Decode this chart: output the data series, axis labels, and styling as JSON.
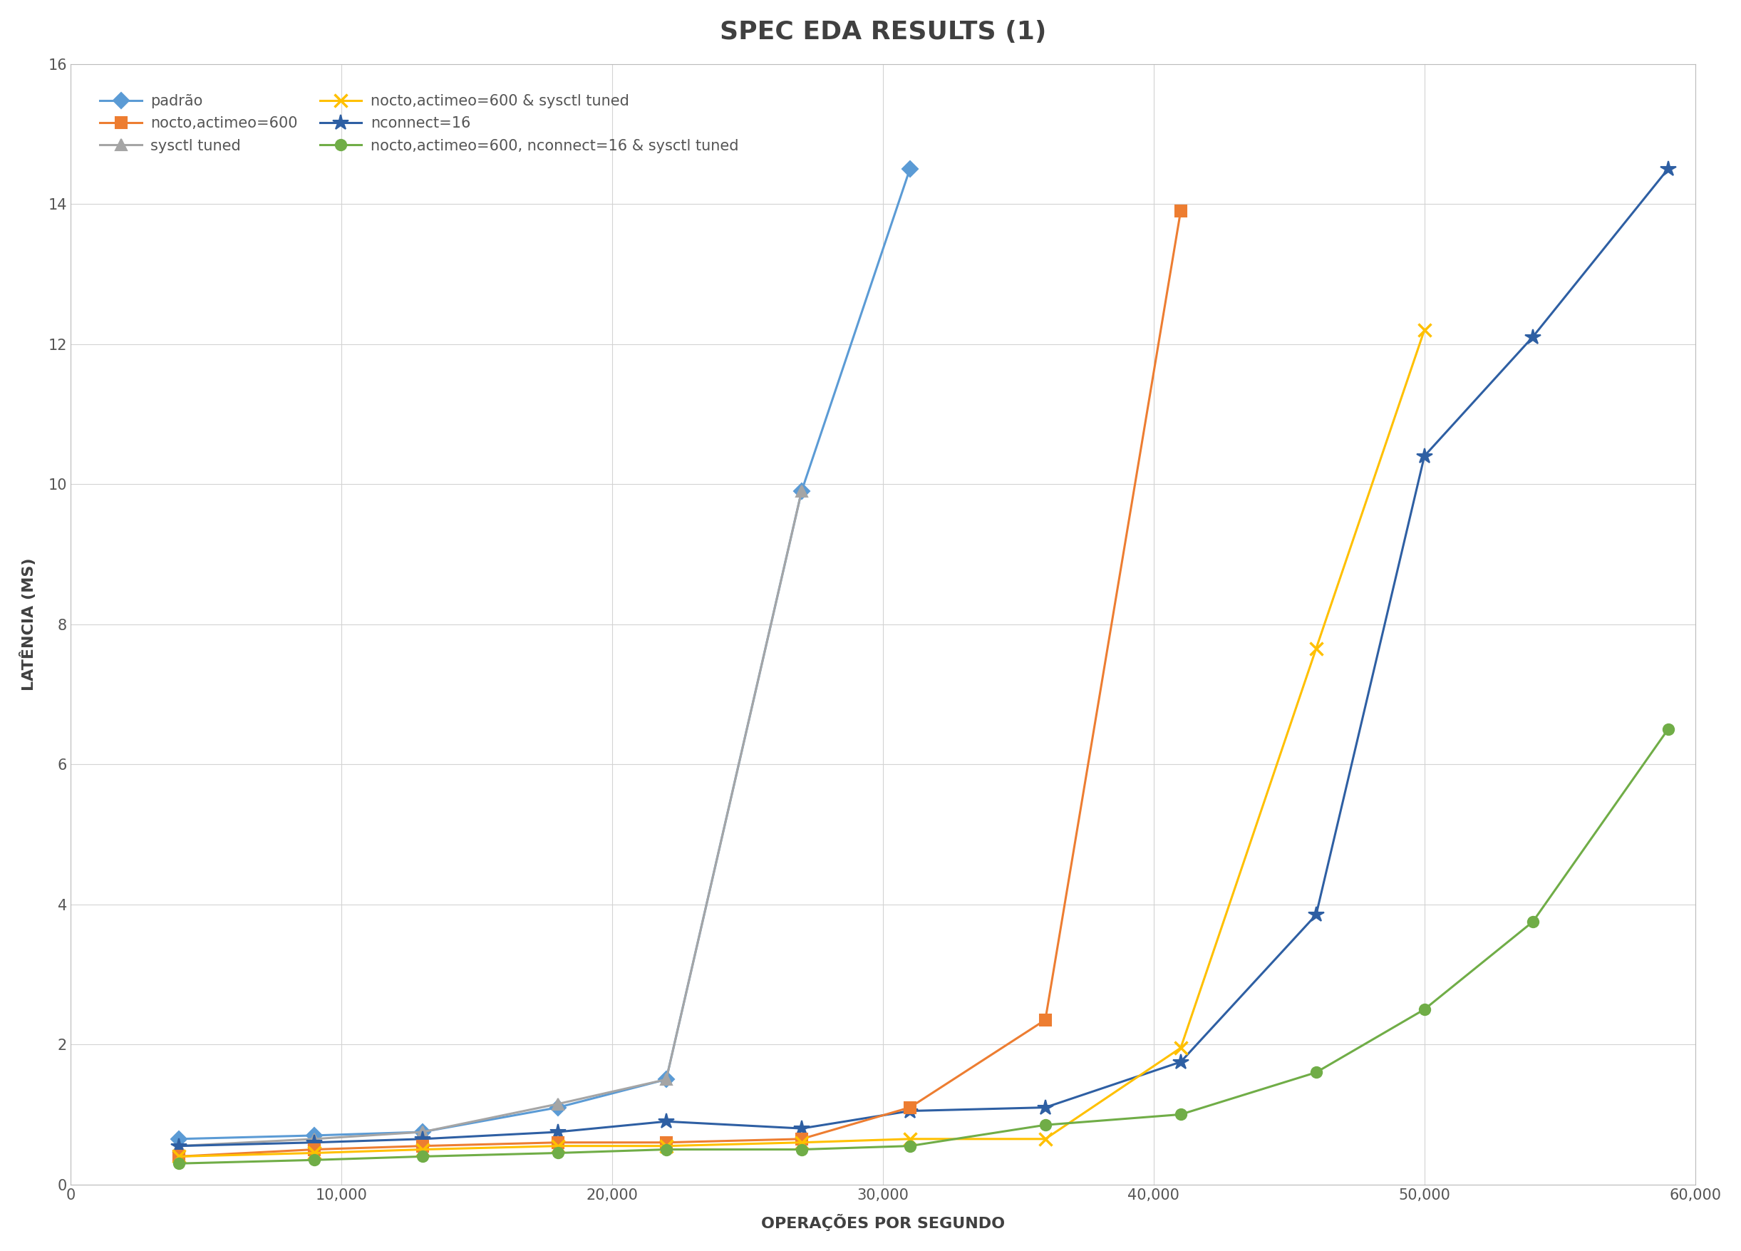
{
  "title": "SPEC EDA RESULTS (1)",
  "xlabel": "OPERAÇÕES POR SEGUNDO",
  "ylabel": "LATÊNCIA (MS)",
  "xlim": [
    0,
    60000
  ],
  "ylim": [
    0,
    16
  ],
  "yticks": [
    0,
    2,
    4,
    6,
    8,
    10,
    12,
    14,
    16
  ],
  "xticks": [
    0,
    10000,
    20000,
    30000,
    40000,
    50000,
    60000
  ],
  "series": [
    {
      "label": "padrão",
      "color": "#5B9BD5",
      "marker": "D",
      "markersize": 11,
      "linewidth": 2.2,
      "x": [
        4000,
        9000,
        13000,
        18000,
        22000,
        27000,
        31000
      ],
      "y": [
        0.65,
        0.7,
        0.75,
        1.1,
        1.5,
        9.9,
        14.5
      ]
    },
    {
      "label": "sysctl tuned",
      "color": "#A5A5A5",
      "marker": "^",
      "markersize": 11,
      "linewidth": 2.2,
      "x": [
        4000,
        9000,
        13000,
        18000,
        22000,
        27000
      ],
      "y": [
        0.55,
        0.65,
        0.75,
        1.15,
        1.5,
        9.9
      ]
    },
    {
      "label": "nconnect=16",
      "color": "#2E5FA3",
      "marker": "*",
      "markersize": 16,
      "linewidth": 2.2,
      "x": [
        4000,
        9000,
        13000,
        18000,
        22000,
        27000,
        31000,
        36000,
        41000,
        46000,
        50000,
        54000,
        59000
      ],
      "y": [
        0.55,
        0.6,
        0.65,
        0.75,
        0.9,
        0.8,
        1.05,
        1.1,
        1.75,
        3.85,
        10.4,
        12.1,
        14.5
      ]
    },
    {
      "label": "nocto,actimeo=600",
      "color": "#ED7D31",
      "marker": "s",
      "markersize": 11,
      "linewidth": 2.2,
      "x": [
        4000,
        9000,
        13000,
        18000,
        22000,
        27000,
        31000,
        36000,
        41000
      ],
      "y": [
        0.4,
        0.5,
        0.55,
        0.6,
        0.6,
        0.65,
        1.1,
        2.35,
        13.9
      ]
    },
    {
      "label": "nocto,actimeo=600 & sysctl tuned",
      "color": "#FFC000",
      "marker": "x",
      "markersize": 13,
      "linewidth": 2.2,
      "markeredgewidth": 2.5,
      "x": [
        4000,
        9000,
        13000,
        18000,
        22000,
        27000,
        31000,
        36000,
        41000,
        46000,
        50000
      ],
      "y": [
        0.4,
        0.45,
        0.5,
        0.55,
        0.55,
        0.6,
        0.65,
        0.65,
        1.95,
        7.65,
        12.2
      ]
    },
    {
      "label": "nocto,actimeo=600, nconnect=16 & sysctl tuned",
      "color": "#70AD47",
      "marker": "o",
      "markersize": 11,
      "linewidth": 2.2,
      "x": [
        4000,
        9000,
        13000,
        18000,
        22000,
        27000,
        31000,
        36000,
        41000,
        46000,
        50000,
        54000,
        59000
      ],
      "y": [
        0.3,
        0.35,
        0.4,
        0.45,
        0.5,
        0.5,
        0.55,
        0.85,
        1.0,
        1.6,
        2.5,
        3.75,
        6.5
      ]
    }
  ],
  "background_color": "#FFFFFF",
  "grid_color": "#D3D3D3",
  "title_fontsize": 26,
  "label_fontsize": 16,
  "tick_fontsize": 15,
  "legend_fontsize": 15
}
